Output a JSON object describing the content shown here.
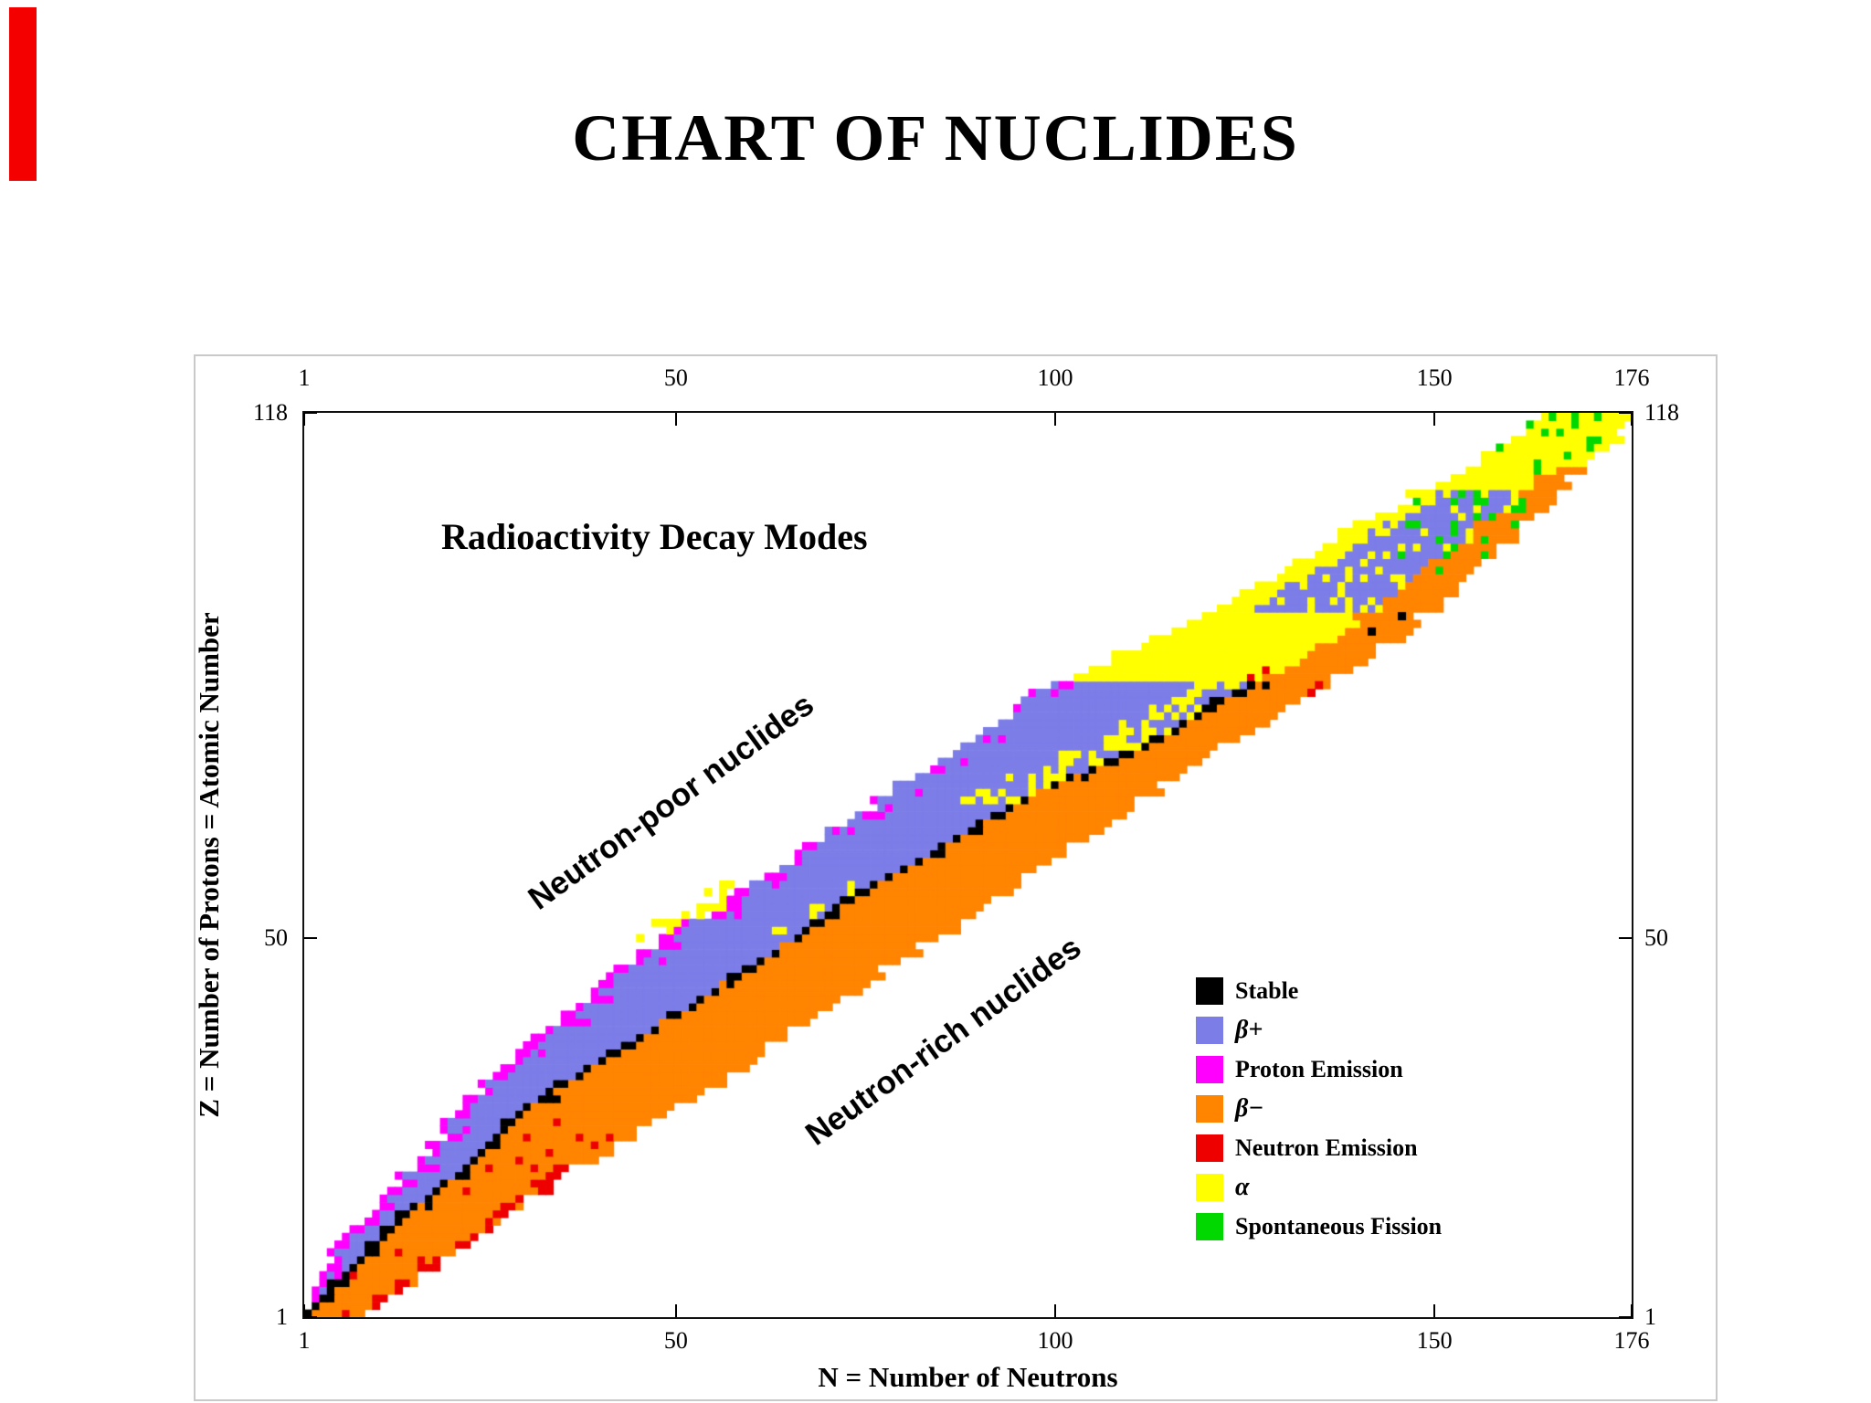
{
  "page": {
    "title": "CHART OF NUCLIDES"
  },
  "decoration": {
    "red_stripe_color": "#f40000"
  },
  "chart_data": {
    "type": "heatmap",
    "title": "Radioactivity Decay Modes",
    "x_axis": {
      "label": "N = Number of Neutrons",
      "range": [
        1,
        176
      ],
      "ticks": [
        1,
        50,
        100,
        150,
        176
      ]
    },
    "y_axis": {
      "label": "Z = Number of Protons = Atomic Number",
      "range": [
        1,
        118
      ],
      "ticks": [
        118,
        50,
        1
      ]
    },
    "annotations": [
      {
        "id": "neutron-poor",
        "text": "Neutron-poor nuclides",
        "rotation_deg": -36
      },
      {
        "id": "neutron-rich",
        "text": "Neutron-rich nuclides",
        "rotation_deg": -36
      }
    ],
    "legend": [
      {
        "key": "stable",
        "label": "Stable",
        "color": "#000000"
      },
      {
        "key": "beta_plus",
        "label": "β+",
        "color": "#7d7de8"
      },
      {
        "key": "proton_emission",
        "label": "Proton Emission",
        "color": "#ff00ff"
      },
      {
        "key": "beta_minus",
        "label": "β−",
        "color": "#ff8400"
      },
      {
        "key": "neutron_emission",
        "label": "Neutron Emission",
        "color": "#ee0000"
      },
      {
        "key": "alpha",
        "label": "α",
        "color": "#ffff00"
      },
      {
        "key": "spontaneous_fission",
        "label": "Spontaneous Fission",
        "color": "#00d800"
      }
    ],
    "stability_line_ZN": [
      [
        1,
        1
      ],
      [
        2,
        2
      ],
      [
        8,
        8
      ],
      [
        14,
        14
      ],
      [
        20,
        22
      ],
      [
        28,
        30
      ],
      [
        34,
        40
      ],
      [
        40,
        50
      ],
      [
        45,
        58
      ],
      [
        50,
        66
      ],
      [
        56,
        74
      ],
      [
        60,
        82
      ],
      [
        66,
        92
      ],
      [
        70,
        100
      ],
      [
        76,
        114
      ],
      [
        82,
        124
      ],
      [
        83,
        126
      ]
    ],
    "band_rows_ZNminNmax": [
      [
        1,
        1,
        8
      ],
      [
        6,
        3,
        16
      ],
      [
        10,
        6,
        22
      ],
      [
        20,
        15,
        36
      ],
      [
        28,
        22,
        50
      ],
      [
        36,
        30,
        62
      ],
      [
        44,
        40,
        74
      ],
      [
        50,
        49,
        84
      ],
      [
        58,
        62,
        96
      ],
      [
        66,
        74,
        108
      ],
      [
        74,
        86,
        120
      ],
      [
        82,
        98,
        134
      ],
      [
        90,
        116,
        146
      ],
      [
        100,
        134,
        158
      ],
      [
        110,
        152,
        168
      ],
      [
        118,
        166,
        177
      ]
    ],
    "extra_cells": [
      {
        "n": 126,
        "z": 83,
        "key": "stable"
      },
      {
        "n": 142,
        "z": 90,
        "key": "stable"
      },
      {
        "n": 146,
        "z": 92,
        "key": "stable"
      },
      {
        "n": 134,
        "z": 82,
        "key": "neutron_emission"
      },
      {
        "n": 135,
        "z": 83,
        "key": "neutron_emission"
      }
    ]
  }
}
